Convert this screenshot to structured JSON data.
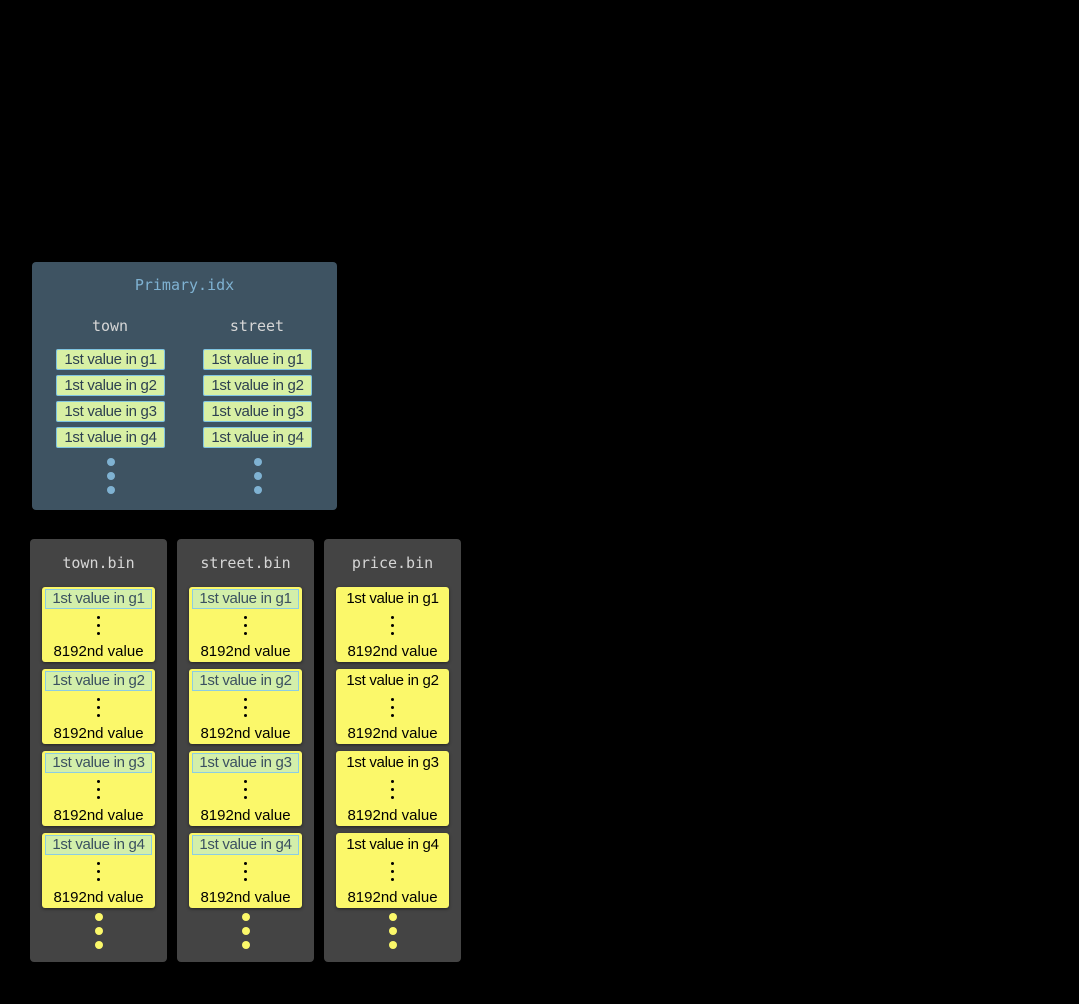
{
  "primary": {
    "title": "Primary.idx",
    "columns": [
      {
        "name": "town",
        "marks": [
          "1st value in g1",
          "1st value in g2",
          "1st value in g3",
          "1st value in g4"
        ]
      },
      {
        "name": "street",
        "marks": [
          "1st value in g1",
          "1st value in g2",
          "1st value in g3",
          "1st value in g4"
        ]
      }
    ]
  },
  "bins": [
    {
      "title": "town.bin",
      "indexed": true,
      "granules": [
        {
          "first": "1st value in g1",
          "last": "8192nd value"
        },
        {
          "first": "1st value in g2",
          "last": "8192nd value"
        },
        {
          "first": "1st value in g3",
          "last": "8192nd value"
        },
        {
          "first": "1st value in g4",
          "last": "8192nd value"
        }
      ]
    },
    {
      "title": "street.bin",
      "indexed": true,
      "granules": [
        {
          "first": "1st value in g1",
          "last": "8192nd value"
        },
        {
          "first": "1st value in g2",
          "last": "8192nd value"
        },
        {
          "first": "1st value in g3",
          "last": "8192nd value"
        },
        {
          "first": "1st value in g4",
          "last": "8192nd value"
        }
      ]
    },
    {
      "title": "price.bin",
      "indexed": false,
      "granules": [
        {
          "first": "1st value in g1",
          "last": "8192nd value"
        },
        {
          "first": "1st value in g2",
          "last": "8192nd value"
        },
        {
          "first": "1st value in g3",
          "last": "8192nd value"
        },
        {
          "first": "1st value in g4",
          "last": "8192nd value"
        }
      ]
    }
  ],
  "colors": {
    "index_panel": "#3e5362",
    "bin_panel": "#444444",
    "granule": "#fbf86a",
    "mark": "#d8f0a4"
  }
}
